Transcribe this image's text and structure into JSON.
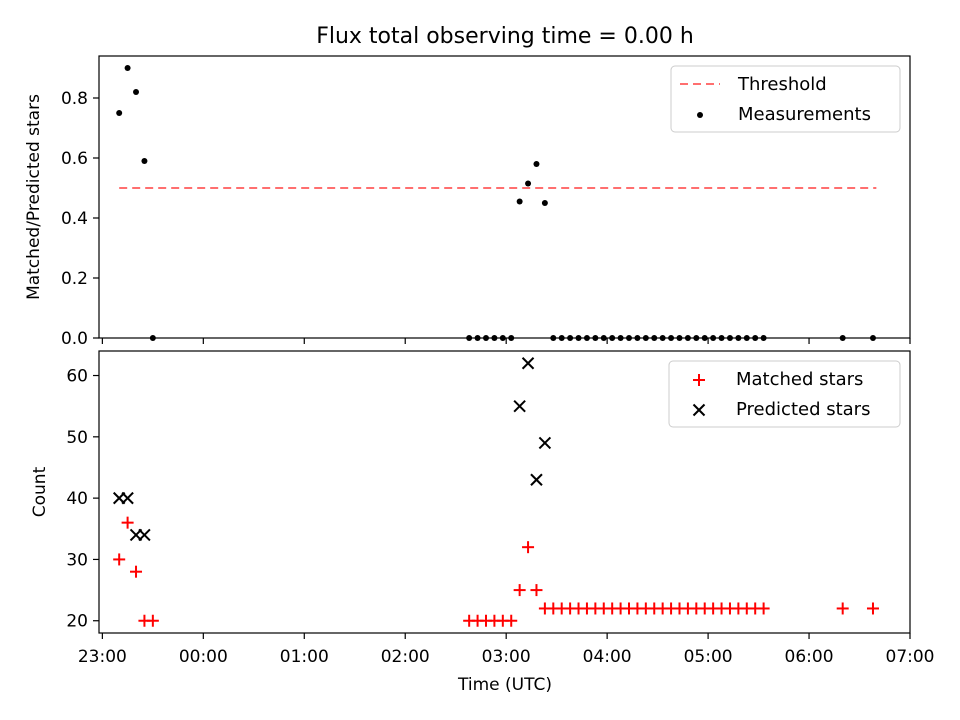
{
  "figure_title": "Flux total observing time = 0.00 h",
  "colors": {
    "threshold": "#ff6f6f",
    "measurement": "#000000",
    "matched": "#ff0000",
    "predicted": "#000000"
  },
  "chart_data": [
    {
      "type": "scatter",
      "ylabel": "Matched/Predicted stars",
      "xlim": [
        "23:00",
        "07:00"
      ],
      "x_start": "22:58",
      "ylim": [
        0,
        0.94
      ],
      "yticks": [
        "0.0",
        "0.2",
        "0.4",
        "0.6",
        "0.8"
      ],
      "ytick_values": [
        0,
        0.2,
        0.4,
        0.6,
        0.8
      ],
      "legend": {
        "position": "top-right",
        "entries": [
          "Threshold",
          "Measurements"
        ]
      },
      "series": [
        {
          "name": "Threshold",
          "style": "dashed-line",
          "x": [
            "23:10",
            "06:40"
          ],
          "y": [
            0.5,
            0.5
          ]
        },
        {
          "name": "Measurements",
          "style": "dot",
          "x": [
            "23:10",
            "23:15",
            "23:20",
            "23:25",
            "23:30",
            "02:38",
            "02:43",
            "02:48",
            "02:53",
            "02:58",
            "03:03",
            "03:08",
            "03:13",
            "03:18",
            "03:23",
            "03:28",
            "03:33",
            "03:38",
            "03:43",
            "03:48",
            "03:53",
            "03:58",
            "04:03",
            "04:08",
            "04:13",
            "04:18",
            "04:23",
            "04:28",
            "04:33",
            "04:38",
            "04:43",
            "04:48",
            "04:53",
            "04:58",
            "05:03",
            "05:08",
            "05:13",
            "05:18",
            "05:23",
            "05:28",
            "05:33",
            "06:20",
            "06:38"
          ],
          "y": [
            0.75,
            0.9,
            0.82,
            0.59,
            0.0,
            0.0,
            0.0,
            0.0,
            0.0,
            0.0,
            0.0,
            0.455,
            0.515,
            0.58,
            0.45,
            0.0,
            0.0,
            0.0,
            0.0,
            0.0,
            0.0,
            0.0,
            0.0,
            0.0,
            0.0,
            0.0,
            0.0,
            0.0,
            0.0,
            0.0,
            0.0,
            0.0,
            0.0,
            0.0,
            0.0,
            0.0,
            0.0,
            0.0,
            0.0,
            0.0,
            0.0,
            0.0,
            0.0
          ]
        }
      ]
    },
    {
      "type": "scatter",
      "xlabel": "Time (UTC)",
      "ylabel": "Count",
      "xlim": [
        "23:00",
        "07:00"
      ],
      "x_start": "22:58",
      "xticks": [
        "23:00",
        "00:00",
        "01:00",
        "02:00",
        "03:00",
        "04:00",
        "05:00",
        "06:00",
        "07:00"
      ],
      "ylim": [
        18,
        64
      ],
      "yticks": [
        "20",
        "30",
        "40",
        "50",
        "60"
      ],
      "ytick_values": [
        20,
        30,
        40,
        50,
        60
      ],
      "legend": {
        "position": "top-right",
        "entries": [
          "Matched stars",
          "Predicted stars"
        ]
      },
      "series": [
        {
          "name": "Matched stars",
          "style": "plus",
          "x": [
            "23:10",
            "23:15",
            "23:20",
            "23:25",
            "23:30",
            "02:38",
            "02:43",
            "02:48",
            "02:53",
            "02:58",
            "03:03",
            "03:08",
            "03:13",
            "03:18",
            "03:23",
            "03:28",
            "03:33",
            "03:38",
            "03:43",
            "03:48",
            "03:53",
            "03:58",
            "04:03",
            "04:08",
            "04:13",
            "04:18",
            "04:23",
            "04:28",
            "04:33",
            "04:38",
            "04:43",
            "04:48",
            "04:53",
            "04:58",
            "05:03",
            "05:08",
            "05:13",
            "05:18",
            "05:23",
            "05:28",
            "05:33",
            "06:20",
            "06:38"
          ],
          "y": [
            30,
            36,
            28,
            20,
            20,
            20,
            20,
            20,
            20,
            20,
            20,
            25,
            32,
            25,
            22,
            22,
            22,
            22,
            22,
            22,
            22,
            22,
            22,
            22,
            22,
            22,
            22,
            22,
            22,
            22,
            22,
            22,
            22,
            22,
            22,
            22,
            22,
            22,
            22,
            22,
            22,
            22,
            22
          ]
        },
        {
          "name": "Predicted stars",
          "style": "cross",
          "x": [
            "23:10",
            "23:15",
            "23:20",
            "23:25",
            "03:08",
            "03:13",
            "03:18",
            "03:23"
          ],
          "y": [
            40,
            40,
            34,
            34,
            55,
            62,
            43,
            49
          ]
        }
      ]
    }
  ]
}
